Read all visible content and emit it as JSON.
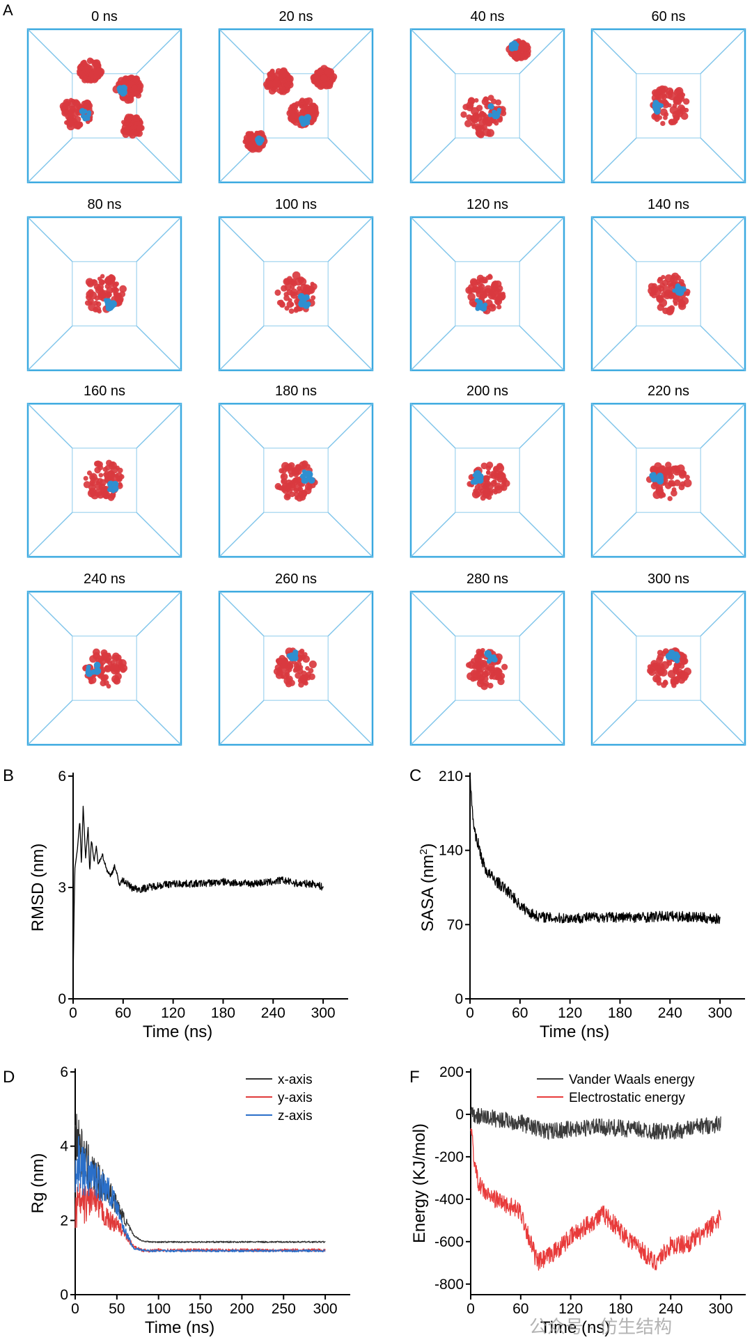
{
  "panel_a": {
    "label": "A",
    "frames": [
      {
        "time": "0 ns",
        "state": "dispersed"
      },
      {
        "time": "20 ns",
        "state": "clusters"
      },
      {
        "time": "40 ns",
        "state": "two"
      },
      {
        "time": "60 ns",
        "state": "one"
      },
      {
        "time": "80 ns",
        "state": "one"
      },
      {
        "time": "100 ns",
        "state": "one"
      },
      {
        "time": "120 ns",
        "state": "one"
      },
      {
        "time": "140 ns",
        "state": "one"
      },
      {
        "time": "160 ns",
        "state": "one"
      },
      {
        "time": "180 ns",
        "state": "one"
      },
      {
        "time": "200 ns",
        "state": "one"
      },
      {
        "time": "220 ns",
        "state": "one"
      },
      {
        "time": "240 ns",
        "state": "one"
      },
      {
        "time": "260 ns",
        "state": "one"
      },
      {
        "time": "280 ns",
        "state": "one"
      },
      {
        "time": "300 ns",
        "state": "one"
      }
    ],
    "colors": {
      "box": "#3aa9e0",
      "protein": "#d93a3f",
      "ligand": "#2f8fd0"
    }
  },
  "watermark": "公众号 · 仿生结构",
  "chart_data": [
    {
      "id": "B",
      "label": "B",
      "type": "line",
      "xlabel": "Time (ns)",
      "ylabel": "RMSD (nm)",
      "xlim": [
        0,
        330
      ],
      "ylim": [
        0,
        6
      ],
      "xticks": [
        0,
        60,
        120,
        180,
        240,
        300
      ],
      "yticks": [
        0,
        3,
        6
      ],
      "xtick_labels": [
        "0",
        "60",
        "120",
        "180",
        "240",
        "300"
      ],
      "ytick_labels": [
        "0",
        "3",
        "6"
      ],
      "legend": [],
      "series": [
        {
          "name": "RMSD",
          "color": "#000000",
          "x": [
            0,
            2,
            5,
            8,
            10,
            12,
            15,
            18,
            20,
            22,
            25,
            28,
            30,
            35,
            40,
            45,
            50,
            55,
            60,
            70,
            80,
            90,
            100,
            120,
            150,
            180,
            210,
            240,
            250,
            270,
            290,
            300
          ],
          "y": [
            0.5,
            3.5,
            4.0,
            4.8,
            3.6,
            5.2,
            3.8,
            4.6,
            3.4,
            4.3,
            3.7,
            4.1,
            3.6,
            3.9,
            3.5,
            3.3,
            3.6,
            3.1,
            3.2,
            3.0,
            2.95,
            3.0,
            3.05,
            3.1,
            3.1,
            3.15,
            3.1,
            3.15,
            3.2,
            3.1,
            3.1,
            3.0
          ],
          "noise": [
            0,
            0.1
          ]
        }
      ]
    },
    {
      "id": "C",
      "label": "C",
      "type": "line",
      "xlabel": "Time (ns)",
      "ylabel": "SASA (nm",
      "ylabel_sup": "2",
      "ylabel_end": ")",
      "xlim": [
        0,
        330
      ],
      "ylim": [
        0,
        210
      ],
      "xticks": [
        0,
        60,
        120,
        180,
        240,
        300
      ],
      "yticks": [
        0,
        70,
        140,
        210
      ],
      "xtick_labels": [
        "0",
        "60",
        "120",
        "180",
        "240",
        "300"
      ],
      "ytick_labels": [
        "0",
        "70",
        "140",
        "210"
      ],
      "legend": [],
      "series": [
        {
          "name": "SASA",
          "color": "#000000",
          "x": [
            0,
            2,
            5,
            10,
            15,
            20,
            30,
            40,
            50,
            60,
            70,
            80,
            90,
            100,
            120,
            150,
            180,
            210,
            240,
            270,
            300
          ],
          "y": [
            210,
            185,
            160,
            145,
            130,
            120,
            112,
            105,
            98,
            88,
            82,
            78,
            77,
            76,
            76,
            77,
            77,
            77,
            78,
            77,
            75
          ],
          "noise": [
            6,
            5
          ]
        }
      ]
    },
    {
      "id": "D",
      "label": "D",
      "type": "line",
      "xlabel": "Time (ns)",
      "ylabel": "Rg (nm)",
      "xlim": [
        0,
        330
      ],
      "ylim": [
        0,
        6
      ],
      "xticks": [
        0,
        50,
        100,
        150,
        200,
        250,
        300
      ],
      "yticks": [
        0,
        2,
        4,
        6
      ],
      "xtick_labels": [
        "0",
        "50",
        "100",
        "150",
        "200",
        "250",
        "300"
      ],
      "ytick_labels": [
        "0",
        "2",
        "4",
        "6"
      ],
      "legend": [
        "x-axis",
        "y-axis",
        "z-axis"
      ],
      "legend_position": "top-right",
      "series": [
        {
          "name": "x-axis",
          "color": "#333333",
          "x": [
            0,
            5,
            10,
            20,
            30,
            40,
            50,
            60,
            70,
            80,
            90,
            100,
            150,
            200,
            250,
            300
          ],
          "y": [
            4.5,
            4.0,
            3.6,
            3.3,
            3.0,
            2.8,
            2.4,
            2.0,
            1.6,
            1.45,
            1.42,
            1.42,
            1.42,
            1.42,
            1.42,
            1.42
          ],
          "noise": [
            0.8,
            0.02
          ]
        },
        {
          "name": "y-axis",
          "color": "#e03a3a",
          "x": [
            0,
            5,
            10,
            20,
            30,
            40,
            50,
            60,
            70,
            80,
            90,
            100,
            150,
            200,
            250,
            300
          ],
          "y": [
            2.2,
            2.5,
            2.4,
            2.6,
            2.3,
            2.0,
            1.9,
            1.6,
            1.3,
            1.2,
            1.18,
            1.2,
            1.2,
            1.2,
            1.2,
            1.2
          ],
          "noise": [
            0.6,
            0.04
          ]
        },
        {
          "name": "z-axis",
          "color": "#2a6fc9",
          "x": [
            0,
            5,
            10,
            20,
            30,
            40,
            50,
            60,
            70,
            80,
            90,
            100,
            150,
            200,
            250,
            300
          ],
          "y": [
            3.2,
            3.6,
            3.3,
            3.2,
            3.0,
            2.8,
            2.4,
            1.7,
            1.25,
            1.2,
            1.18,
            1.18,
            1.18,
            1.18,
            1.18,
            1.18
          ],
          "noise": [
            0.8,
            0.03
          ]
        }
      ]
    },
    {
      "id": "F",
      "label": "F",
      "type": "line",
      "xlabel": "Time (ns)",
      "ylabel": "Energy (KJ/mol)",
      "xlim": [
        0,
        330
      ],
      "ylim": [
        -850,
        200
      ],
      "xticks": [
        0,
        60,
        120,
        180,
        240,
        300
      ],
      "yticks": [
        -800,
        -600,
        -400,
        -200,
        0,
        200
      ],
      "xtick_labels": [
        "0",
        "60",
        "120",
        "180",
        "240",
        "300"
      ],
      "ytick_labels": [
        "-800",
        "-600",
        "-400",
        "-200",
        "0",
        "200"
      ],
      "legend": [
        "Vander Waals energy",
        "Electrostatic energy"
      ],
      "legend_position": "top-right",
      "series": [
        {
          "name": "Vander Waals energy",
          "color": "#3a3a3a",
          "x": [
            0,
            30,
            60,
            90,
            120,
            150,
            180,
            210,
            240,
            270,
            300
          ],
          "y": [
            -5,
            -20,
            -40,
            -80,
            -70,
            -60,
            -65,
            -75,
            -85,
            -60,
            -45
          ],
          "noise": [
            40,
            40
          ]
        },
        {
          "name": "Electrostatic energy",
          "color": "#e83b3b",
          "x": [
            0,
            5,
            10,
            20,
            40,
            60,
            70,
            80,
            90,
            100,
            120,
            140,
            160,
            180,
            200,
            220,
            240,
            260,
            280,
            300
          ],
          "y": [
            -40,
            -250,
            -330,
            -380,
            -420,
            -460,
            -580,
            -700,
            -680,
            -650,
            -580,
            -520,
            -470,
            -550,
            -620,
            -700,
            -620,
            -610,
            -560,
            -480
          ],
          "noise": [
            40,
            45
          ]
        }
      ]
    }
  ]
}
